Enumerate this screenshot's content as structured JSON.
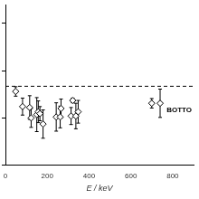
{
  "chart_data": {
    "type": "scatter",
    "x_label": "E / keV",
    "x": [
      49,
      82,
      116,
      123,
      150,
      157,
      165,
      180,
      243,
      262,
      266,
      314,
      322,
      337,
      348,
      700,
      740
    ],
    "values": [
      1.56,
      1.24,
      1.22,
      1.0,
      1.07,
      1.13,
      1.09,
      0.87,
      1.02,
      1.02,
      1.2,
      1.04,
      1.37,
      1.04,
      1.13,
      1.31,
      1.31
    ],
    "errors": [
      0.1,
      0.18,
      0.25,
      0.2,
      0.36,
      0.23,
      0.15,
      0.3,
      0.3,
      0.23,
      0.2,
      0.18,
      0.05,
      0.27,
      0.24,
      0.1,
      0.3
    ],
    "reference_line": 1.67,
    "annotations": [
      "BOTTO"
    ],
    "xlim": [
      0,
      900
    ],
    "xticks": [
      0,
      200,
      400,
      600,
      800
    ],
    "ylim": [
      0,
      3.4
    ],
    "yticks": [
      0,
      1,
      2,
      3
    ],
    "tick_labels": "x",
    "grid": false,
    "marker": "diamond",
    "color": "#000000"
  }
}
